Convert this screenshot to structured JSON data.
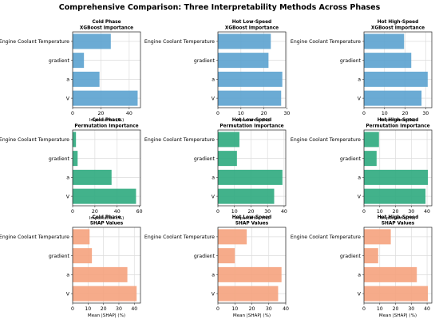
{
  "figure_title": "Comprehensive Comparison: Three Interpretability Methods Across Phases",
  "colors": {
    "xgboost": "#5BA2CF",
    "permutation": "#2EAA7E",
    "shap": "#F5A27D"
  },
  "chart_data": [
    {
      "type": "bar",
      "orientation": "horizontal",
      "method": "xgboost",
      "title": "Cold Phase\nXGBoost Importance",
      "categories": [
        "Engine Coolant Temperature",
        "gradient",
        "a",
        "V"
      ],
      "values": [
        27,
        8,
        19,
        46
      ],
      "xlabel": "Importance (%)",
      "xlim": [
        0,
        48
      ],
      "xticks": [
        0,
        20,
        40
      ],
      "grid": true
    },
    {
      "type": "bar",
      "orientation": "horizontal",
      "method": "xgboost",
      "title": "Hot Low-Speed\nXGBoost Importance",
      "categories": [
        "Engine Coolant Temperature",
        "gradient",
        "a",
        "V"
      ],
      "values": [
        23,
        22,
        28,
        27.5
      ],
      "xlabel": "Importance (%)",
      "xlim": [
        0,
        29.5
      ],
      "xticks": [
        0,
        10,
        20,
        30
      ],
      "grid": true
    },
    {
      "type": "bar",
      "orientation": "horizontal",
      "method": "xgboost",
      "title": "Hot High-Speed\nXGBoost Importance",
      "categories": [
        "Engine Coolant Temperature",
        "gradient",
        "a",
        "V"
      ],
      "values": [
        19.5,
        23,
        31,
        28
      ],
      "xlabel": "Importance (%)",
      "xlim": [
        0,
        33
      ],
      "xticks": [
        0,
        10,
        20,
        30
      ],
      "grid": true
    },
    {
      "type": "bar",
      "orientation": "horizontal",
      "method": "permutation",
      "title": "Cold Phase\nPermutation Importance",
      "categories": [
        "Engine Coolant Temperature",
        "gradient",
        "a",
        "V"
      ],
      "values": [
        3,
        4.5,
        35,
        57
      ],
      "xlabel": "Importance (%)",
      "xlim": [
        0,
        61
      ],
      "xticks": [
        0,
        20,
        40,
        60
      ],
      "grid": true
    },
    {
      "type": "bar",
      "orientation": "horizontal",
      "method": "permutation",
      "title": "Hot Low-Speed\nPermutation Importance",
      "categories": [
        "Engine Coolant Temperature",
        "gradient",
        "a",
        "V"
      ],
      "values": [
        13,
        11.5,
        39,
        34
      ],
      "xlabel": "Importance (%)",
      "xlim": [
        0,
        41
      ],
      "xticks": [
        0,
        10,
        20,
        30,
        40
      ],
      "grid": true
    },
    {
      "type": "bar",
      "orientation": "horizontal",
      "method": "permutation",
      "title": "Hot High-Speed\nPermutation Importance",
      "categories": [
        "Engine Coolant Temperature",
        "gradient",
        "a",
        "V"
      ],
      "values": [
        9.5,
        8,
        40.5,
        39
      ],
      "xlabel": "Importance (%)",
      "xlim": [
        0,
        43
      ],
      "xticks": [
        0,
        10,
        20,
        30,
        40
      ],
      "grid": true
    },
    {
      "type": "bar",
      "orientation": "horizontal",
      "method": "shap",
      "title": "Cold Phase\nSHAP Values",
      "categories": [
        "Engine Coolant Temperature",
        "gradient",
        "a",
        "V"
      ],
      "values": [
        11,
        12.5,
        35.5,
        41.5
      ],
      "xlabel": "Mean |SHAP| (%)",
      "xlim": [
        0,
        44
      ],
      "xticks": [
        0,
        10,
        20,
        30,
        40
      ],
      "grid": true
    },
    {
      "type": "bar",
      "orientation": "horizontal",
      "method": "shap",
      "title": "Hot Low-Speed\nSHAP Values",
      "categories": [
        "Engine Coolant Temperature",
        "gradient",
        "a",
        "V"
      ],
      "values": [
        17,
        10,
        37.5,
        35.5
      ],
      "xlabel": "Mean |SHAP| (%)",
      "xlim": [
        0,
        40
      ],
      "xticks": [
        0,
        10,
        20,
        30,
        40
      ],
      "grid": true
    },
    {
      "type": "bar",
      "orientation": "horizontal",
      "method": "shap",
      "title": "Hot High-Speed\nSHAP Values",
      "categories": [
        "Engine Coolant Temperature",
        "gradient",
        "a",
        "V"
      ],
      "values": [
        17,
        9,
        33.5,
        40.5
      ],
      "xlabel": "Mean |SHAP| (%)",
      "xlim": [
        0,
        43
      ],
      "xticks": [
        0,
        10,
        20,
        30,
        40
      ],
      "grid": true
    }
  ]
}
